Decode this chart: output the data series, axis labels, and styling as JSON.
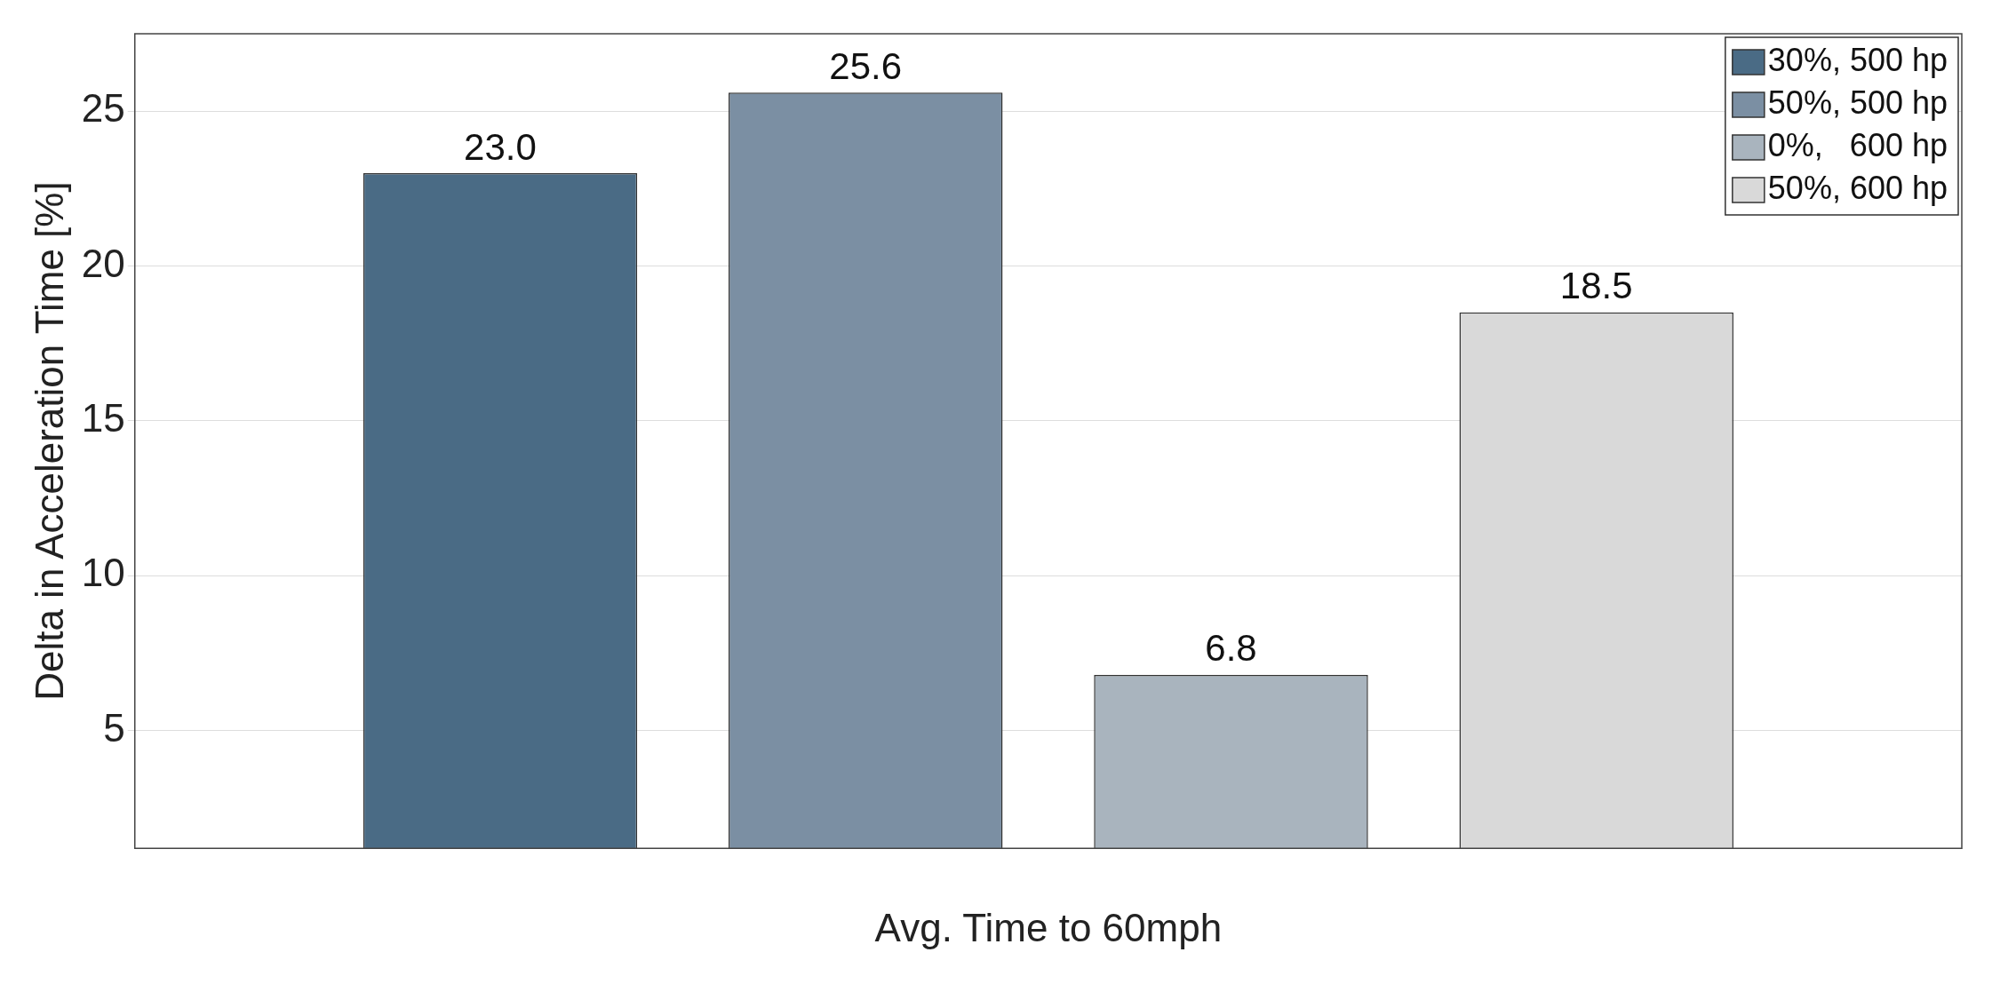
{
  "chart_data": {
    "type": "bar",
    "xlabel": "Avg. Time to 60mph",
    "ylabel": "Delta in Acceleration Time [%]",
    "categories": [
      null
    ],
    "series": [
      {
        "name": "30%, 500 hp",
        "color": "#4a6b85",
        "values": [
          23.0
        ],
        "value_labels": [
          "23.0"
        ]
      },
      {
        "name": "50%, 500 hp",
        "color": "#7b8fa3",
        "values": [
          25.6
        ],
        "value_labels": [
          "25.6"
        ]
      },
      {
        "name": "0%,   600 hp",
        "color": "#a9b4be",
        "values": [
          6.8
        ],
        "value_labels": [
          "6.8"
        ]
      },
      {
        "name": "50%, 600 hp",
        "color": "#d9d9d9",
        "values": [
          18.5
        ],
        "value_labels": [
          "18.5"
        ]
      }
    ],
    "ylim": [
      1.2,
      27.5
    ],
    "yticks": [
      5,
      10,
      15,
      20,
      25
    ],
    "grid": "y",
    "legend": "top right"
  }
}
